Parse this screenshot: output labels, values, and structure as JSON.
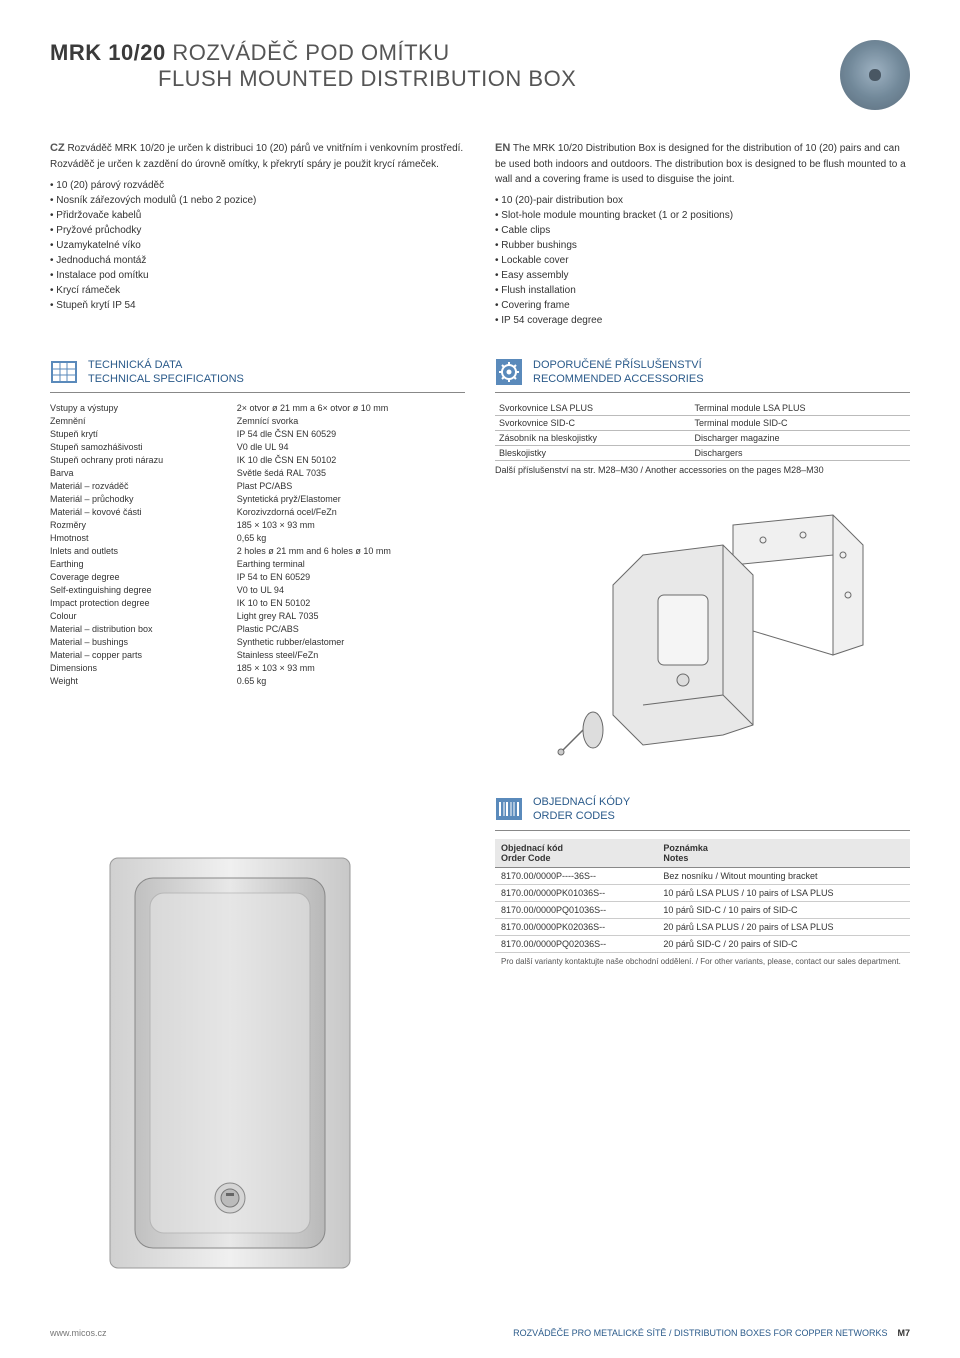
{
  "header": {
    "title_bold": "MRK 10/20",
    "title_thin": " ROZVÁDĚČ POD OMÍTKU",
    "subtitle": "FLUSH MOUNTED DISTRIBUTION BOX"
  },
  "cz": {
    "tag": "CZ",
    "desc": "Rozváděč MRK 10/20 je určen k distribuci 10 (20) párů ve vnitřním i venkovním prostředí. Rozváděč je určen k zazdění do úrovně omítky, k překrytí spáry je použit krycí rámeček.",
    "bullets": [
      "10 (20) párový rozváděč",
      "Nosník zářezových modulů (1 nebo 2 pozice)",
      "Přidržovače kabelů",
      "Pryžové průchodky",
      "Uzamykatelné víko",
      "Jednoduchá montáž",
      "Instalace pod omítku",
      "Krycí rámeček",
      "Stupeň krytí IP 54"
    ]
  },
  "en": {
    "tag": "EN",
    "desc": "The MRK 10/20 Distribution Box is designed for the distribution of 10 (20) pairs and can be used both indoors and outdoors. The distribution box is designed to be flush mounted to a wall and a covering frame is used to disguise the joint.",
    "bullets": [
      "10 (20)-pair distribution box",
      "Slot-hole module mounting bracket (1 or 2 positions)",
      "Cable clips",
      "Rubber bushings",
      "Lockable cover",
      "Easy assembly",
      "Flush installation",
      "Covering frame",
      "IP 54 coverage degree"
    ]
  },
  "tech": {
    "title1": "TECHNICKÁ DATA",
    "title2": "TECHNICAL SPECIFICATIONS",
    "rows": [
      [
        "Vstupy a výstupy",
        "2× otvor ø 21 mm a 6× otvor ø 10 mm"
      ],
      [
        "Zemnění",
        "Zemnící svorka"
      ],
      [
        "Stupeň krytí",
        "IP 54 dle ČSN EN 60529"
      ],
      [
        "Stupeň samozhášivosti",
        "V0 dle UL 94"
      ],
      [
        "Stupeň ochrany proti nárazu",
        "IK 10 dle ČSN EN 50102"
      ],
      [
        "Barva",
        "Světle šedá RAL 7035"
      ],
      [
        "Materiál – rozváděč",
        "Plast PC/ABS"
      ],
      [
        "Materiál – průchodky",
        "Syntetická pryž/Elastomer"
      ],
      [
        "Materiál – kovové části",
        "Korozivzdorná ocel/FeZn"
      ],
      [
        "Rozměry",
        "185 × 103 × 93 mm"
      ],
      [
        "Hmotnost",
        "0,65 kg"
      ],
      [
        "Inlets and outlets",
        "2 holes ø 21 mm and 6 holes ø 10 mm"
      ],
      [
        "Earthing",
        "Earthing terminal"
      ],
      [
        "Coverage degree",
        "IP 54 to EN 60529"
      ],
      [
        "Self-extinguishing degree",
        "V0 to UL 94"
      ],
      [
        "Impact protection degree",
        "IK 10 to EN 50102"
      ],
      [
        "Colour",
        "Light grey RAL 7035"
      ],
      [
        "Material – distribution box",
        "Plastic PC/ABS"
      ],
      [
        "Material – bushings",
        "Synthetic rubber/elastomer"
      ],
      [
        "Material – copper parts",
        "Stainless steel/FeZn"
      ],
      [
        "Dimensions",
        "185 × 103 × 93 mm"
      ],
      [
        "Weight",
        "0.65 kg"
      ]
    ]
  },
  "acc": {
    "title1": "DOPORUČENÉ PŘÍSLUŠENSTVÍ",
    "title2": "RECOMMENDED ACCESSORIES",
    "rows": [
      [
        "Svorkovnice LSA PLUS",
        "Terminal module LSA PLUS"
      ],
      [
        "Svorkovnice SID-C",
        "Terminal module SID-C"
      ],
      [
        "Zásobník na bleskojistky",
        "Discharger magazine"
      ],
      [
        "Bleskojistky",
        "Dischargers"
      ]
    ],
    "footer": "Další příslušenství na str. M28–M30 / Another accessories on the pages M28–M30"
  },
  "order": {
    "title1": "OBJEDNACÍ KÓDY",
    "title2": "ORDER CODES",
    "head1a": "Objednací kód",
    "head1b": "Order Code",
    "head2a": "Poznámka",
    "head2b": "Notes",
    "rows": [
      [
        "8170.00/0000P----36S--",
        "Bez nosníku / Witout mounting bracket"
      ],
      [
        "8170.00/0000PK01036S--",
        "10 párů LSA PLUS / 10 pairs of LSA PLUS"
      ],
      [
        "8170.00/0000PQ01036S--",
        "10 párů SID-C / 10 pairs of SID-C"
      ],
      [
        "8170.00/0000PK02036S--",
        "20 párů LSA PLUS / 20 pairs of LSA PLUS"
      ],
      [
        "8170.00/0000PQ02036S--",
        "20 párů SID-C / 20 pairs of SID-C"
      ]
    ],
    "footer": "Pro další varianty kontaktujte naše obchodní oddělení. / For other variants, please, contact our sales department."
  },
  "footer": {
    "left": "www.micos.cz",
    "right_text": "ROZVÁDĚČE PRO METALICKÉ SÍTĚ / DISTRIBUTION BOXES FOR COPPER NETWORKS",
    "page_prefix": "M",
    "page_num": "7"
  },
  "colors": {
    "accent": "#2a5a8a",
    "divider": "#888"
  }
}
